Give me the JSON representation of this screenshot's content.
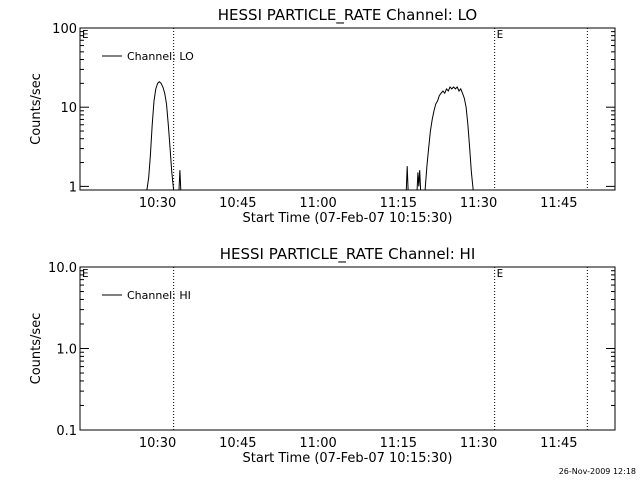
{
  "footer": {
    "timestamp": "26-Nov-2009 12:18"
  },
  "chart_data": [
    {
      "type": "line",
      "title": "HESSI PARTICLE_RATE Channel: LO",
      "xlabel": "Start Time (07-Feb-07 10:15:30)",
      "ylabel": "Counts/sec",
      "yscale": "log",
      "xlim": [
        "10:15:30",
        "11:55:30"
      ],
      "ylim": [
        0.9,
        100
      ],
      "xticks": [
        "10:30",
        "10:45",
        "11:00",
        "11:15",
        "11:30",
        "11:45"
      ],
      "yticks": [
        "1",
        "10",
        "100"
      ],
      "legend": {
        "position": "top-left",
        "entries": [
          "Channel: LO"
        ]
      },
      "eclipse_markers": [
        {
          "time": "10:15:30",
          "label": "E"
        },
        {
          "time": "10:33:00",
          "label": ""
        },
        {
          "time": "11:33:00",
          "label": "E"
        },
        {
          "time": "11:50:20",
          "label": ""
        }
      ],
      "series": [
        {
          "name": "Channel: LO",
          "segments": [
            [
              [
                "10:28:00",
                0.9
              ],
              [
                "10:28:20",
                1.3
              ],
              [
                "10:28:40",
                2.5
              ],
              [
                "10:29:00",
                6
              ],
              [
                "10:29:20",
                12
              ],
              [
                "10:29:40",
                17
              ],
              [
                "10:30:00",
                20
              ],
              [
                "10:30:20",
                21
              ],
              [
                "10:30:40",
                20
              ],
              [
                "10:31:00",
                18
              ],
              [
                "10:31:20",
                15
              ],
              [
                "10:31:40",
                11
              ],
              [
                "10:32:00",
                6
              ],
              [
                "10:32:20",
                3
              ],
              [
                "10:32:40",
                1.5
              ],
              [
                "10:33:00",
                0.9
              ]
            ],
            [
              [
                "10:34:00",
                0.9
              ],
              [
                "10:34:10",
                1.6
              ],
              [
                "10:34:20",
                0.9
              ]
            ],
            [
              [
                "11:16:30",
                0.9
              ],
              [
                "11:16:40",
                1.8
              ],
              [
                "11:16:50",
                0.9
              ]
            ],
            [
              [
                "11:18:30",
                0.9
              ],
              [
                "11:18:40",
                1.5
              ],
              [
                "11:18:50",
                1.0
              ],
              [
                "11:19:00",
                1.6
              ],
              [
                "11:19:10",
                0.9
              ]
            ],
            [
              [
                "11:20:00",
                0.9
              ],
              [
                "11:20:20",
                1.8
              ],
              [
                "11:20:40",
                3
              ],
              [
                "11:21:00",
                5
              ],
              [
                "11:21:20",
                7
              ],
              [
                "11:21:40",
                9
              ],
              [
                "11:22:00",
                11
              ],
              [
                "11:22:20",
                12
              ],
              [
                "11:22:40",
                14
              ],
              [
                "11:23:00",
                15
              ],
              [
                "11:23:20",
                16
              ],
              [
                "11:23:40",
                15
              ],
              [
                "11:24:00",
                17
              ],
              [
                "11:24:20",
                16
              ],
              [
                "11:24:40",
                18
              ],
              [
                "11:25:00",
                17
              ],
              [
                "11:25:20",
                18
              ],
              [
                "11:25:40",
                17
              ],
              [
                "11:26:00",
                18
              ],
              [
                "11:26:20",
                16
              ],
              [
                "11:26:40",
                17
              ],
              [
                "11:27:00",
                15
              ],
              [
                "11:27:20",
                13
              ],
              [
                "11:27:40",
                10
              ],
              [
                "11:28:00",
                6
              ],
              [
                "11:28:20",
                3
              ],
              [
                "11:28:40",
                1.5
              ],
              [
                "11:29:00",
                0.9
              ]
            ]
          ]
        }
      ]
    },
    {
      "type": "line",
      "title": "HESSI PARTICLE_RATE Channel: HI",
      "xlabel": "Start Time (07-Feb-07 10:15:30)",
      "ylabel": "Counts/sec",
      "yscale": "log",
      "xlim": [
        "10:15:30",
        "11:55:30"
      ],
      "ylim": [
        0.1,
        10
      ],
      "xticks": [
        "10:30",
        "10:45",
        "11:00",
        "11:15",
        "11:30",
        "11:45"
      ],
      "yticks": [
        "0.1",
        "1.0",
        "10.0"
      ],
      "legend": {
        "position": "top-left",
        "entries": [
          "Channel: HI"
        ]
      },
      "eclipse_markers": [
        {
          "time": "10:15:30",
          "label": "E"
        },
        {
          "time": "10:33:00",
          "label": ""
        },
        {
          "time": "11:33:00",
          "label": "E"
        },
        {
          "time": "11:50:20",
          "label": ""
        }
      ],
      "series": [
        {
          "name": "Channel: HI",
          "segments": []
        }
      ]
    }
  ]
}
